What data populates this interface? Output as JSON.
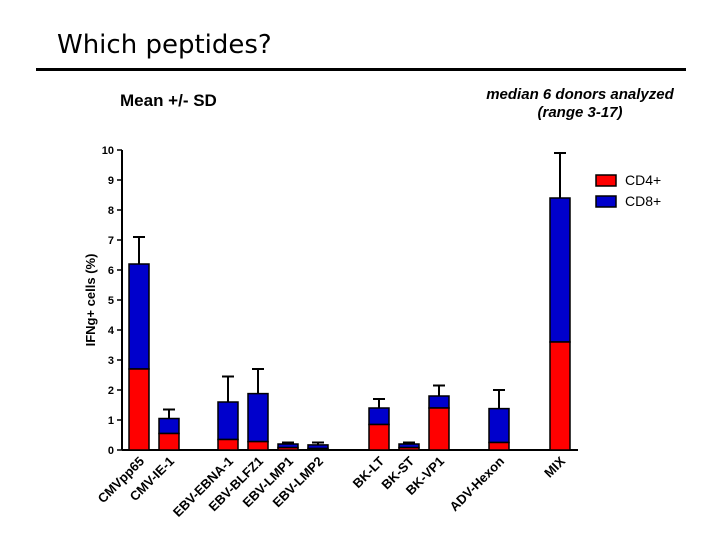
{
  "slide": {
    "title": "Which peptides?"
  },
  "chart_data": {
    "type": "bar",
    "subtitle": "Mean +/- SD",
    "annotation_line1": "median 6 donors analyzed",
    "annotation_line2": "(range 3-17)",
    "ylabel": "IFNg+ cells (%)",
    "ylim": [
      0,
      10
    ],
    "yticks": [
      0,
      1,
      2,
      3,
      4,
      5,
      6,
      7,
      8,
      9,
      10
    ],
    "categories": [
      "CMVpp65",
      "CMV-IE-1",
      "EBV-EBNA-1",
      "EBV-BLFZ1",
      "EBV-LMP1",
      "EBV-LMP2",
      "BK-LT",
      "BK-ST",
      "BK-VP1",
      "ADV-Hexon",
      "MIX"
    ],
    "stacked": true,
    "series": [
      {
        "name": "CD4+",
        "color": "#ff0000",
        "values": [
          2.7,
          0.55,
          0.35,
          0.28,
          0.08,
          0.05,
          0.85,
          0.08,
          1.4,
          0.25,
          3.6
        ]
      },
      {
        "name": "CD8+",
        "color": "#0000cc",
        "values": [
          3.5,
          0.5,
          1.25,
          1.6,
          0.12,
          0.12,
          0.55,
          0.12,
          0.4,
          1.13,
          4.8
        ]
      }
    ],
    "error_top": [
      7.1,
      1.35,
      2.45,
      2.7,
      0.25,
      0.25,
      1.7,
      0.25,
      2.15,
      2.0,
      9.9
    ],
    "legend_position": "top-right"
  }
}
